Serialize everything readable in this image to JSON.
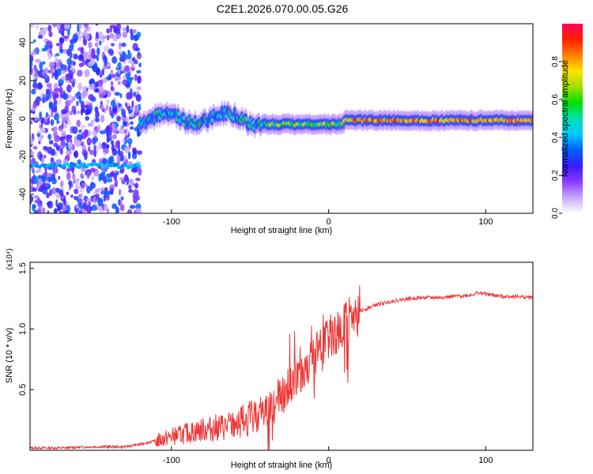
{
  "figure_title": "C2E1.2026.070.00.05.G26",
  "chart_data": [
    {
      "type": "heatmap",
      "title": "C2E1.2026.070.00.05.G26",
      "xlabel": "Height of straight line (km)",
      "ylabel": "Frequency (Hz)",
      "xlim": [
        -190,
        130
      ],
      "ylim": [
        -50,
        50
      ],
      "xticks": [
        -100,
        0,
        100
      ],
      "xtick_labels": [
        "-100",
        "0",
        "100"
      ],
      "yticks": [
        -40,
        -20,
        0,
        20,
        40
      ],
      "ytick_labels": [
        "-40",
        "-20",
        "0",
        "20",
        "40"
      ],
      "colorbar": {
        "label": "Normalized spectral amplitude",
        "range": [
          0,
          1
        ],
        "ticks": [
          0.0,
          0.2,
          0.4,
          0.6,
          0.8
        ],
        "tick_labels": [
          "0.0",
          "0.2",
          "0.4",
          "0.6",
          "0.8"
        ],
        "colors": [
          "#ffffff",
          "#c8a8ff",
          "#8a3cff",
          "#3a1cff",
          "#0060ff",
          "#00c8ff",
          "#00e0b0",
          "#00e000",
          "#a0e000",
          "#ffe000",
          "#ff8000",
          "#ff2000",
          "#ff0060"
        ]
      },
      "features": [
        {
          "name": "noise region",
          "x_range": [
            -190,
            -120
          ],
          "frequency_range": [
            -50,
            50
          ],
          "amplitude": 0.2
        },
        {
          "name": "weak low-frequency line",
          "x_range": [
            -190,
            -120
          ],
          "frequency": -25,
          "amplitude": 0.35
        },
        {
          "name": "signal onset",
          "x_range": [
            -120,
            -40
          ],
          "frequency": 0,
          "amplitude": 0.45
        },
        {
          "name": "transition",
          "x_range": [
            -40,
            10
          ],
          "frequency": -3,
          "amplitude": 0.6
        },
        {
          "name": "stable carrier",
          "x_range": [
            10,
            130
          ],
          "frequency": -1,
          "amplitude": 0.8
        }
      ]
    },
    {
      "type": "line",
      "title": "",
      "xlabel": "Height of straight line (km)",
      "ylabel": "SNR (10 * v/v)",
      "y_scale_label": "(x10⁴)",
      "xlim": [
        -190,
        130
      ],
      "ylim": [
        0,
        1.55
      ],
      "xticks": [
        -100,
        0,
        100
      ],
      "xtick_labels": [
        "-100",
        "0",
        "100"
      ],
      "yticks": [
        0.5,
        1.0,
        1.5
      ],
      "ytick_labels": [
        "0.5",
        "1.0",
        "1.5"
      ],
      "color": "#ee3333",
      "series": [
        {
          "name": "SNR",
          "x": [
            -190,
            -170,
            -150,
            -130,
            -120,
            -110,
            -100,
            -90,
            -80,
            -70,
            -60,
            -50,
            -40,
            -30,
            -25,
            -20,
            -15,
            -10,
            -5,
            0,
            5,
            10,
            15,
            20,
            30,
            40,
            50,
            60,
            70,
            80,
            90,
            95,
            100,
            110,
            120,
            130
          ],
          "y": [
            0.02,
            0.02,
            0.03,
            0.03,
            0.05,
            0.08,
            0.12,
            0.15,
            0.18,
            0.2,
            0.22,
            0.28,
            0.35,
            0.45,
            0.55,
            0.62,
            0.7,
            0.78,
            0.85,
            0.92,
            0.98,
            1.02,
            1.08,
            1.15,
            1.2,
            1.23,
            1.25,
            1.26,
            1.26,
            1.27,
            1.28,
            1.3,
            1.29,
            1.27,
            1.27,
            1.26
          ]
        }
      ]
    }
  ]
}
